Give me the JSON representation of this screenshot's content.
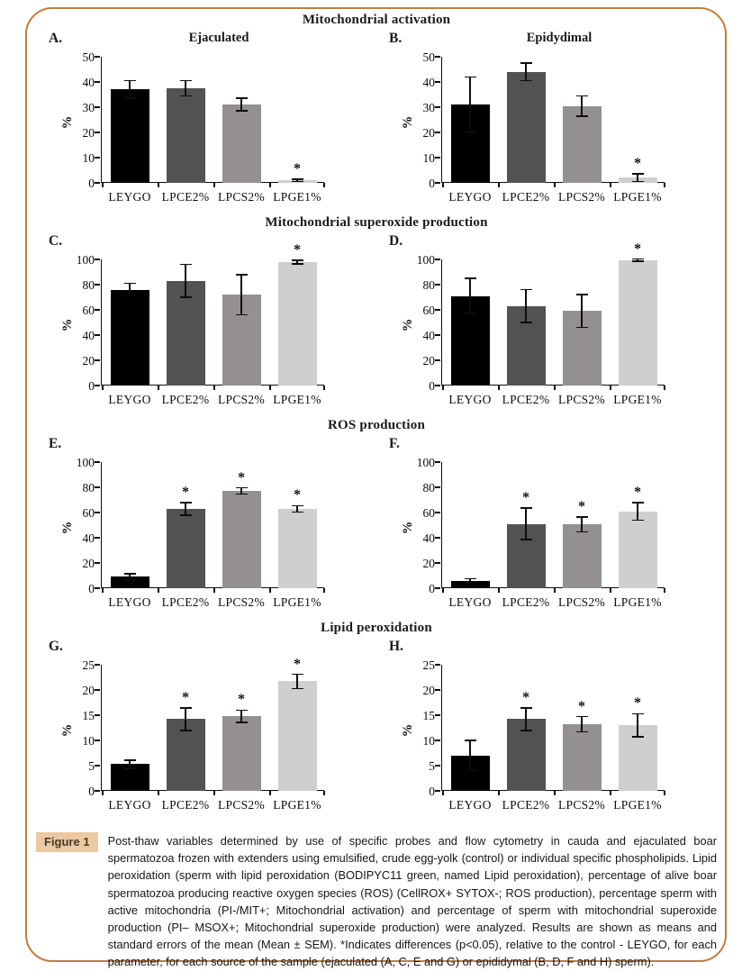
{
  "caption": {
    "label": "Figure 1",
    "text": "Post-thaw variables determined by use of specific probes and flow cytometry in cauda and ejaculated boar spermatozoa frozen with extenders using emulsified, crude egg-yolk (control) or individual specific phospholipids. Lipid peroxidation (sperm with lipid peroxidation (BODIPYC11 green, named Lipid peroxidation), percentage of alive boar spermatozoa producing reactive oxygen species (ROS) (CellROX+ SYTOX-; ROS production), percentage sperm with active mitochondria (PI-/MIT+; Mitochondrial activation) and percentage of sperm with mitochondrial superoxide production (PI– MSOX+; Mitochondrial superoxide production) were analyzed. Results are shown as means and standard errors of the mean (Mean ± SEM). *Indicates differences (p<0.05), relative to the control - LEYGO, for each parameter, for each source of the sample (ejaculated (A, C, E and G) or epididymal (B, D, F and H) sperm)."
  },
  "chart_data": {
    "type": "bar",
    "categories": [
      "LEYGO",
      "LPCE2%",
      "LPCS2%",
      "LPGE1%"
    ],
    "ylabel": "%",
    "bar_colors": [
      "#000000",
      "#525252",
      "#93908f",
      "#d0cece"
    ],
    "significance_marker": "*",
    "legend_position": "none",
    "grid": false,
    "sections": [
      {
        "title": "Mitochondrial activation",
        "panels": [
          {
            "letter": "A.",
            "subtitle": "Ejaculated",
            "ylim": [
              0,
              50
            ],
            "yticks": [
              0,
              10,
              20,
              30,
              40,
              50
            ],
            "values": [
              37,
              37.5,
              31,
              1
            ],
            "errors": [
              3.5,
              3,
              2.5,
              0.5
            ],
            "sig": [
              false,
              false,
              false,
              true
            ]
          },
          {
            "letter": "B.",
            "subtitle": "Epidydimal",
            "ylim": [
              0,
              50
            ],
            "yticks": [
              0,
              10,
              20,
              30,
              40,
              50
            ],
            "values": [
              31,
              44,
              30.5,
              2
            ],
            "errors": [
              11,
              3.5,
              4,
              1.5
            ],
            "sig": [
              false,
              false,
              false,
              true
            ]
          }
        ]
      },
      {
        "title": "Mitochondrial superoxide production",
        "panels": [
          {
            "letter": "C.",
            "ylim": [
              0,
              100
            ],
            "yticks": [
              0,
              20,
              40,
              60,
              80,
              100
            ],
            "values": [
              76,
              83,
              72,
              98
            ],
            "errors": [
              5,
              13,
              16,
              1.5
            ],
            "sig": [
              false,
              false,
              false,
              true
            ]
          },
          {
            "letter": "D.",
            "ylim": [
              0,
              100
            ],
            "yticks": [
              0,
              20,
              40,
              60,
              80,
              100
            ],
            "values": [
              71,
              63,
              59,
              99.5
            ],
            "errors": [
              14,
              13,
              13,
              0.8
            ],
            "sig": [
              false,
              false,
              false,
              true
            ]
          }
        ]
      },
      {
        "title": "ROS production",
        "panels": [
          {
            "letter": "E.",
            "ylim": [
              0,
              100
            ],
            "yticks": [
              0,
              20,
              40,
              60,
              80,
              100
            ],
            "values": [
              9,
              63,
              77,
              63
            ],
            "errors": [
              2.5,
              5,
              2.5,
              2.5
            ],
            "sig": [
              false,
              true,
              true,
              true
            ]
          },
          {
            "letter": "F.",
            "ylim": [
              0,
              100
            ],
            "yticks": [
              0,
              20,
              40,
              60,
              80,
              100
            ],
            "values": [
              6,
              51,
              50.5,
              61
            ],
            "errors": [
              1.5,
              12.5,
              6,
              7
            ],
            "sig": [
              false,
              true,
              true,
              true
            ]
          }
        ]
      },
      {
        "title": "Lipid peroxidation",
        "panels": [
          {
            "letter": "G.",
            "ylim": [
              0,
              25
            ],
            "yticks": [
              0,
              5,
              10,
              15,
              20,
              25
            ],
            "values": [
              5.3,
              14.2,
              14.8,
              21.7
            ],
            "errors": [
              0.8,
              2.2,
              1.2,
              1.4
            ],
            "sig": [
              false,
              true,
              true,
              true
            ]
          },
          {
            "letter": "H.",
            "ylim": [
              0,
              25
            ],
            "yticks": [
              0,
              5,
              10,
              15,
              20,
              25
            ],
            "values": [
              7,
              14.2,
              13.2,
              13
            ],
            "errors": [
              3,
              2.2,
              1.5,
              2.3
            ],
            "sig": [
              false,
              true,
              true,
              true
            ]
          }
        ]
      }
    ]
  }
}
